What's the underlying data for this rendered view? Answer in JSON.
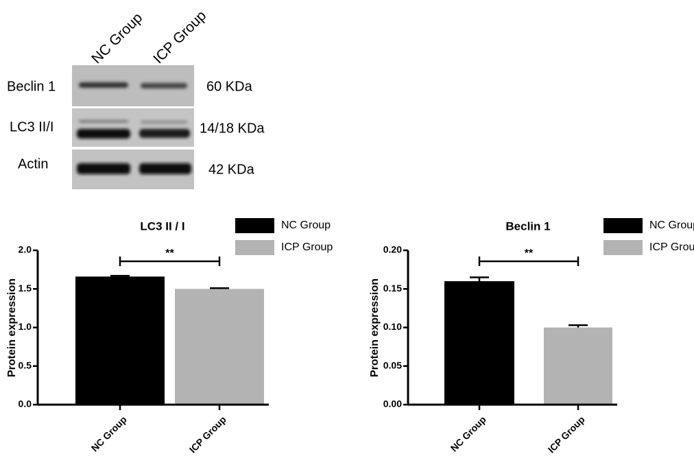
{
  "blot": {
    "lanes": [
      "NC Group",
      "ICP Group"
    ],
    "proteins": [
      {
        "name": "Beclin 1",
        "size": "60 KDa"
      },
      {
        "name": "LC3 II/I",
        "size": "14/18 KDa"
      },
      {
        "name": "Actin",
        "size": "42 KDa"
      }
    ]
  },
  "chart_data": [
    {
      "type": "bar",
      "title": "LC3 II / I",
      "y_label": "Protein expression",
      "categories": [
        "NC Group",
        "ICP Group"
      ],
      "values": [
        1.66,
        1.5
      ],
      "errors": [
        0.01,
        0.01
      ],
      "colors": [
        "#000000",
        "#b3b3b3"
      ],
      "ylim": [
        0,
        2.0
      ],
      "yticks": [
        {
          "value": 0,
          "label": "0.0"
        },
        {
          "value": 0.5,
          "label": "0.5"
        },
        {
          "value": 1.0,
          "label": "1.0"
        },
        {
          "value": 1.5,
          "label": "1.5"
        },
        {
          "value": 2.0,
          "label": "2.0"
        }
      ],
      "annotation": "**"
    },
    {
      "type": "bar",
      "title": "Beclin 1",
      "y_label": "Protein expression",
      "categories": [
        "NC Group",
        "ICP Group"
      ],
      "values": [
        0.16,
        0.1
      ],
      "errors": [
        0.005,
        0.003
      ],
      "colors": [
        "#000000",
        "#b3b3b3"
      ],
      "ylim": [
        0,
        0.2
      ],
      "yticks": [
        {
          "value": 0,
          "label": "0.00"
        },
        {
          "value": 0.05,
          "label": "0.05"
        },
        {
          "value": 0.1,
          "label": "0.10"
        },
        {
          "value": 0.15,
          "label": "0.15"
        },
        {
          "value": 0.2,
          "label": "0.20"
        }
      ],
      "annotation": "**"
    }
  ]
}
